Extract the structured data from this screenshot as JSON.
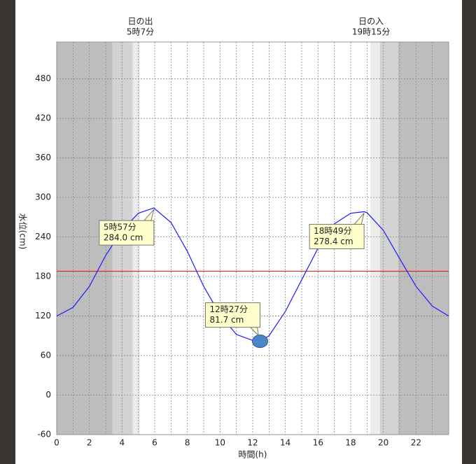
{
  "chart_data": {
    "type": "line",
    "y_label": "水位(cm)",
    "x_label": "時間(h)",
    "sun_labels": [
      {
        "x": 5.12,
        "lines": [
          "日の出",
          "5時7分"
        ]
      },
      {
        "x": 19.25,
        "lines": [
          "日の入",
          "19時15分"
        ]
      }
    ],
    "xlim": [
      0,
      24
    ],
    "ylim": [
      -60,
      536
    ],
    "xticks": [
      0,
      2,
      4,
      6,
      8,
      10,
      12,
      14,
      16,
      18,
      20,
      22
    ],
    "x_minor_ticks": [
      1,
      3,
      5,
      7,
      9,
      11,
      13,
      15,
      17,
      19,
      21,
      23
    ],
    "yticks": [
      -60,
      0,
      60,
      120,
      180,
      240,
      300,
      360,
      420,
      480
    ],
    "grid": true,
    "bands": [
      {
        "from": 0,
        "to": 3.42,
        "color": "#bdbdbd"
      },
      {
        "from": 3.42,
        "to": 4.66,
        "color": "#d3d3d3"
      },
      {
        "from": 4.66,
        "to": 5.1,
        "color": "#ececec"
      },
      {
        "from": 19.2,
        "to": 19.8,
        "color": "#ececec"
      },
      {
        "from": 19.8,
        "to": 20.9,
        "color": "#d3d3d3"
      },
      {
        "from": 20.9,
        "to": 24,
        "color": "#bdbdbd"
      }
    ],
    "threshold": {
      "value": 188,
      "color": "#e02020"
    },
    "x": [
      0,
      1,
      2,
      3,
      4,
      5,
      5.95,
      7,
      8,
      9,
      10,
      11,
      12,
      12.45,
      13,
      14,
      15,
      16,
      17,
      18,
      18.82,
      19,
      20,
      21,
      22,
      23,
      24
    ],
    "series": [
      {
        "name": "水位",
        "color": "#1a1aff",
        "values": [
          120,
          133,
          165,
          212,
          250,
          276,
          284.0,
          262,
          218,
          165,
          122,
          92,
          83,
          81.7,
          90,
          127,
          175,
          223,
          260,
          276,
          278.4,
          277,
          250,
          207,
          165,
          135,
          120
        ]
      }
    ],
    "annotations": [
      {
        "x": 5.95,
        "y": 284.0,
        "kind": "high",
        "lines": [
          "5時57分",
          "284.0 cm"
        ]
      },
      {
        "x": 12.45,
        "y": 81.7,
        "kind": "low",
        "lines": [
          "12時27分",
          "81.7 cm"
        ]
      },
      {
        "x": 18.82,
        "y": 278.4,
        "kind": "high",
        "lines": [
          "18時49分",
          "278.4 cm"
        ]
      }
    ],
    "marker": {
      "x": 12.45,
      "y": 81.7,
      "color": "#4a86c8"
    }
  }
}
